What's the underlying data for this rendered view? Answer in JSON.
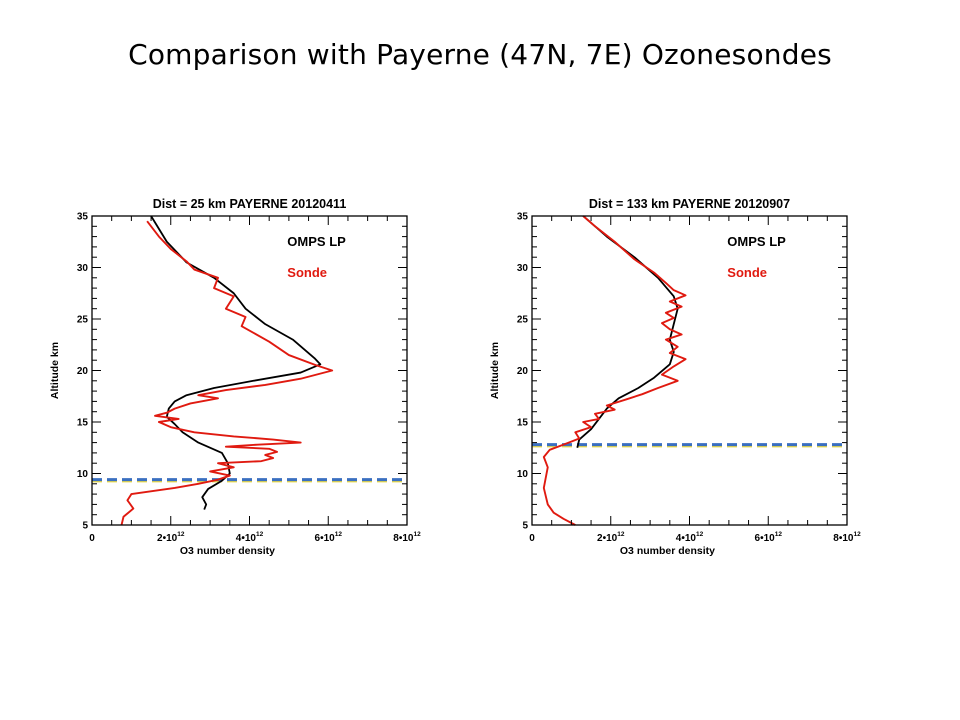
{
  "slide": {
    "title": "Comparison with Payerne (47N, 7E) Ozonesondes"
  },
  "chart_data": [
    {
      "type": "line",
      "title": "Dist = 25 km PAYERNE 20120411",
      "xlabel": "O3 number density",
      "ylabel": "Altitude km",
      "xlim": [
        0,
        8000000000000.0
      ],
      "ylim": [
        5,
        35
      ],
      "x_ticks": [
        {
          "base": "0",
          "exp": ""
        },
        {
          "base": "2•10",
          "exp": "12"
        },
        {
          "base": "4•10",
          "exp": "12"
        },
        {
          "base": "6•10",
          "exp": "12"
        },
        {
          "base": "8•10",
          "exp": "12"
        }
      ],
      "y_ticks": [
        "5",
        "10",
        "15",
        "20",
        "25",
        "30",
        "35"
      ],
      "grid": false,
      "legend_position": "top-right",
      "tropopause_km": 9.4,
      "tropopause_colors": [
        "#3a6fc0",
        "#e6d64a"
      ],
      "series": [
        {
          "name": "OMPS LP",
          "color": "#000000",
          "x": [
            2.85,
            2.9,
            2.8,
            2.95,
            3.3,
            3.5,
            3.45,
            3.3,
            2.7,
            2.3,
            2.1,
            1.9,
            1.95,
            2.1,
            2.4,
            3.1,
            4.1,
            5.3,
            5.8,
            5.65,
            5.1,
            4.4,
            3.9,
            3.6,
            3.1,
            2.4,
            1.9,
            1.5
          ],
          "y": [
            6.5,
            7.0,
            7.7,
            8.5,
            9.3,
            10.0,
            11.0,
            12.0,
            13.0,
            14.0,
            14.8,
            15.5,
            16.3,
            17.0,
            17.6,
            18.3,
            19.0,
            19.8,
            20.6,
            21.2,
            23.0,
            24.5,
            26.0,
            27.5,
            29.0,
            30.5,
            32.5,
            35.0
          ]
        },
        {
          "name": "Sonde",
          "color": "#e01a10",
          "x": [
            0.75,
            0.8,
            1.05,
            0.9,
            1.0,
            2.1,
            2.7,
            3.2,
            3.5,
            3.0,
            3.6,
            3.2,
            4.3,
            4.6,
            4.4,
            4.7,
            4.5,
            3.4,
            4.2,
            5.3,
            4.6,
            3.6,
            2.6,
            2.0,
            1.7,
            2.2,
            1.6,
            1.9,
            2.1,
            2.5,
            3.2,
            2.7,
            3.4,
            4.4,
            5.3,
            6.1,
            5.7,
            5.0,
            4.5,
            3.8,
            3.9,
            3.4,
            3.6,
            3.1,
            3.2,
            2.6,
            2.4,
            2.0,
            1.7,
            1.4
          ],
          "y": [
            5.0,
            5.8,
            6.6,
            7.4,
            8.0,
            8.6,
            9.0,
            9.4,
            9.8,
            10.2,
            10.6,
            11.0,
            11.2,
            11.5,
            11.8,
            12.1,
            12.4,
            12.6,
            12.8,
            13.0,
            13.3,
            13.6,
            14.0,
            14.5,
            15.0,
            15.3,
            15.6,
            15.9,
            16.3,
            16.8,
            17.3,
            17.6,
            18.1,
            18.6,
            19.2,
            20.0,
            20.5,
            21.5,
            22.8,
            24.3,
            25.2,
            26.0,
            27.2,
            28.0,
            29.0,
            29.8,
            30.6,
            31.8,
            33.0,
            34.5
          ]
        }
      ]
    },
    {
      "type": "line",
      "title": "Dist = 133 km PAYERNE 20120907",
      "xlabel": "O3 number density",
      "ylabel": "Altitude km",
      "xlim": [
        0,
        8000000000000.0
      ],
      "ylim": [
        5,
        35
      ],
      "x_ticks": [
        {
          "base": "0",
          "exp": ""
        },
        {
          "base": "2•10",
          "exp": "12"
        },
        {
          "base": "4•10",
          "exp": "12"
        },
        {
          "base": "6•10",
          "exp": "12"
        },
        {
          "base": "8•10",
          "exp": "12"
        }
      ],
      "y_ticks": [
        "5",
        "10",
        "15",
        "20",
        "25",
        "30",
        "35"
      ],
      "grid": false,
      "legend_position": "top-right",
      "tropopause_km": 12.8,
      "tropopause_colors": [
        "#3a6fc0",
        "#e6d64a"
      ],
      "series": [
        {
          "name": "OMPS LP",
          "color": "#000000",
          "x": [
            1.15,
            1.2,
            1.5,
            1.7,
            1.9,
            2.2,
            2.7,
            3.1,
            3.5,
            3.6,
            3.5,
            3.6,
            3.7,
            3.6,
            3.2,
            2.6,
            1.9,
            1.3
          ],
          "y": [
            12.5,
            13.3,
            14.3,
            15.3,
            16.3,
            17.3,
            18.3,
            19.3,
            20.6,
            21.8,
            23.0,
            24.5,
            26.0,
            27.2,
            29.0,
            31.0,
            33.0,
            35.0
          ]
        },
        {
          "name": "Sonde",
          "color": "#e01a10",
          "x": [
            1.1,
            0.8,
            0.55,
            0.4,
            0.35,
            0.3,
            0.35,
            0.4,
            0.3,
            0.45,
            0.8,
            1.2,
            1.1,
            1.5,
            1.3,
            1.7,
            1.6,
            2.1,
            1.9,
            2.4,
            2.8,
            3.2,
            3.7,
            3.3,
            3.6,
            3.9,
            3.5,
            3.7,
            3.4,
            3.8,
            3.5,
            3.3,
            3.6,
            3.4,
            3.8,
            3.5,
            3.9,
            3.6,
            3.4,
            3.1,
            2.6,
            2.1,
            1.6,
            1.3
          ],
          "y": [
            5.0,
            5.6,
            6.2,
            7.0,
            7.8,
            8.6,
            9.6,
            10.6,
            11.6,
            12.3,
            12.8,
            13.4,
            14.0,
            14.5,
            15.0,
            15.3,
            15.8,
            16.2,
            16.6,
            17.2,
            17.7,
            18.3,
            19.0,
            19.6,
            20.4,
            21.1,
            21.7,
            22.3,
            23.0,
            23.5,
            24.0,
            24.6,
            25.1,
            25.6,
            26.2,
            26.7,
            27.3,
            27.8,
            28.5,
            29.5,
            30.8,
            32.5,
            34.0,
            35.0
          ]
        }
      ]
    }
  ]
}
